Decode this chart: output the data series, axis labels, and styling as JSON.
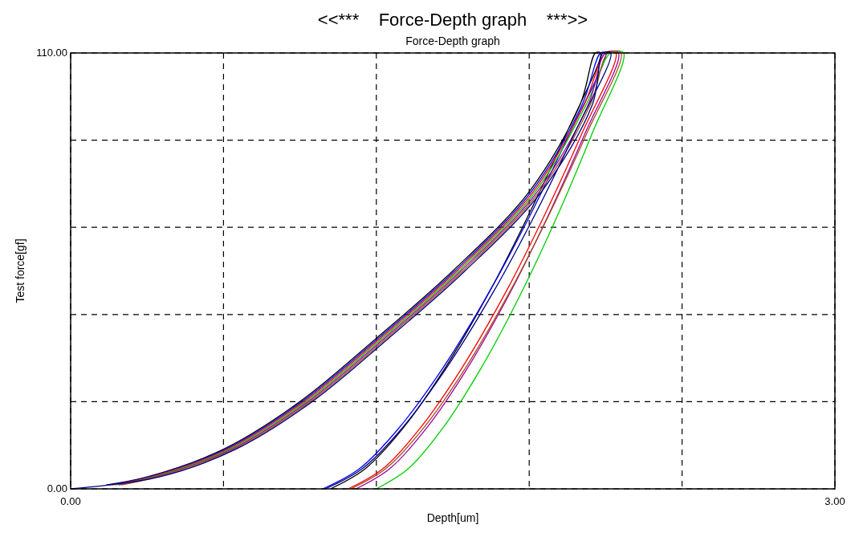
{
  "chart_data": {
    "type": "line",
    "title": "<<***    Force-Depth graph    ***>>",
    "subtitle": "Force-Depth graph",
    "xlabel": "Depth[um]",
    "ylabel": "Test force[gf]",
    "xlim": [
      0,
      3
    ],
    "ylim": [
      0,
      110
    ],
    "xticks": [
      {
        "value": 0,
        "label": "0.00"
      },
      {
        "value": 0.6,
        "label": null
      },
      {
        "value": 1.2,
        "label": null
      },
      {
        "value": 1.8,
        "label": null
      },
      {
        "value": 2.4,
        "label": null
      },
      {
        "value": 3,
        "label": "3.00"
      }
    ],
    "yticks": [
      {
        "value": 0,
        "label": "0.00"
      },
      {
        "value": 22,
        "label": null
      },
      {
        "value": 44,
        "label": null
      },
      {
        "value": 66,
        "label": null
      },
      {
        "value": 88,
        "label": null
      },
      {
        "value": 110,
        "label": "110.00"
      }
    ],
    "grid": true,
    "series": [
      {
        "color": "#000000",
        "x": [
          0.14,
          0.3,
          0.6,
          0.9,
          1.2,
          1.5,
          1.8,
          2.0,
          2.06,
          2.08,
          1.948,
          1.804,
          1.646,
          1.465,
          1.301,
          1.155,
          1.02
        ],
        "values": [
          1,
          3,
          10,
          22,
          38,
          55,
          75,
          97,
          110,
          110,
          90,
          70,
          50,
          30,
          15,
          5,
          0
        ]
      },
      {
        "color": "#0000ff",
        "x": [
          0.152,
          0.308,
          0.608,
          0.908,
          1.208,
          1.508,
          1.808,
          2.008,
          2.08,
          2.1,
          1.961,
          1.811,
          1.646,
          1.456,
          1.284,
          1.132,
          0.99
        ],
        "values": [
          1,
          3,
          10,
          22,
          38,
          55,
          75,
          97,
          110,
          110,
          90,
          70,
          50,
          30,
          15,
          5,
          0
        ]
      },
      {
        "color": "#ff0000",
        "x": [
          0.164,
          0.316,
          0.616,
          0.916,
          1.216,
          1.516,
          1.816,
          2.016,
          2.1,
          2.14,
          2.009,
          1.867,
          1.711,
          1.531,
          1.368,
          1.224,
          1.09
        ],
        "values": [
          1,
          3,
          10,
          22,
          38,
          55,
          75,
          97,
          110,
          110,
          90,
          70,
          50,
          30,
          15,
          5,
          0
        ]
      },
      {
        "color": "#00cc00",
        "x": [
          0.176,
          0.324,
          0.624,
          0.924,
          1.224,
          1.524,
          1.824,
          2.024,
          2.12,
          2.17,
          2.049,
          1.918,
          1.773,
          1.607,
          1.457,
          1.324,
          1.2
        ],
        "values": [
          1,
          3,
          10,
          22,
          38,
          55,
          75,
          97,
          110,
          110,
          90,
          70,
          50,
          30,
          15,
          5,
          0
        ]
      },
      {
        "color": "#a000a0",
        "x": [
          0.188,
          0.332,
          0.632,
          0.932,
          1.232,
          1.532,
          1.832,
          2.032,
          2.1,
          2.15,
          2.021,
          1.882,
          1.729,
          1.553,
          1.393,
          1.251,
          1.12
        ],
        "values": [
          1,
          3,
          10,
          22,
          38,
          55,
          75,
          97,
          110,
          110,
          90,
          70,
          50,
          30,
          15,
          5,
          0
        ]
      },
      {
        "color": "#a05020",
        "x": [
          0.2,
          0.34,
          0.64,
          0.94,
          1.24,
          1.54,
          1.84,
          2.04,
          2.11,
          2.16,
          2.028,
          1.884,
          1.726,
          1.545,
          1.381,
          1.235,
          1.1
        ],
        "values": [
          1,
          3,
          10,
          22,
          38,
          55,
          75,
          97,
          110,
          110,
          90,
          70,
          50,
          30,
          15,
          5,
          0
        ]
      },
      {
        "color": "#000080",
        "x": [
          0,
          0.348,
          0.648,
          0.948,
          1.248,
          1.548,
          1.848,
          2.048,
          2.09,
          2.12,
          1.98,
          1.829,
          1.662,
          1.47,
          1.297,
          1.143,
          1.0
        ],
        "values": [
          0,
          3,
          10,
          22,
          38,
          55,
          75,
          97,
          110,
          110,
          90,
          70,
          50,
          30,
          15,
          5,
          0
        ]
      }
    ]
  }
}
